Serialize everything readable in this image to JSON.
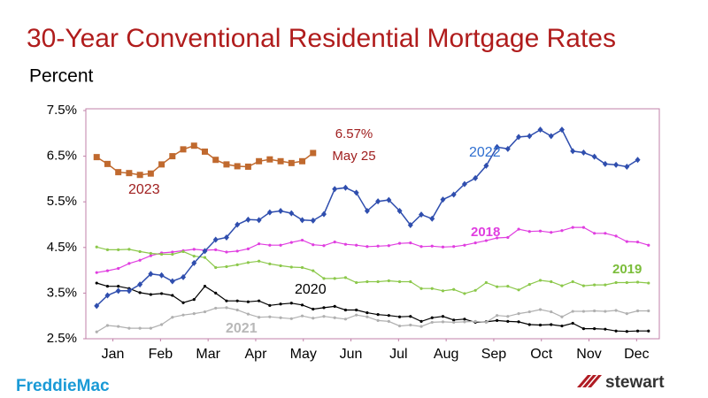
{
  "chart_data": {
    "type": "line",
    "title": "30-Year Conventional Residential Mortgage Rates",
    "subtitle": "Percent",
    "annotations": [
      "6.57%",
      "May 25"
    ],
    "x": [
      1,
      2,
      3,
      4,
      5,
      6,
      7,
      8,
      9,
      10,
      11,
      12,
      13,
      14,
      15,
      16,
      17,
      18,
      19,
      20,
      21,
      22,
      23,
      24,
      25,
      26,
      27,
      28,
      29,
      30,
      31,
      32,
      33,
      34,
      35,
      36,
      37,
      38,
      39,
      40,
      41,
      42,
      43,
      44,
      45,
      46,
      47,
      48,
      49,
      50,
      51,
      52
    ],
    "xlim": [
      0,
      53
    ],
    "xticks": [
      {
        "value": 2.5,
        "label": "Jan"
      },
      {
        "value": 6.9,
        "label": "Feb"
      },
      {
        "value": 11.3,
        "label": "Mar"
      },
      {
        "value": 15.7,
        "label": "Apr"
      },
      {
        "value": 20.1,
        "label": "May"
      },
      {
        "value": 24.5,
        "label": "Jun"
      },
      {
        "value": 28.9,
        "label": "Jul"
      },
      {
        "value": 33.3,
        "label": "Aug"
      },
      {
        "value": 37.7,
        "label": "Sep"
      },
      {
        "value": 42.1,
        "label": "Oct"
      },
      {
        "value": 46.5,
        "label": "Nov"
      },
      {
        "value": 50.9,
        "label": "Dec"
      }
    ],
    "ylim": [
      2.5,
      7.5
    ],
    "yticks": [
      {
        "value": 2.5,
        "label": "2.5%"
      },
      {
        "value": 3.5,
        "label": "3.5%"
      },
      {
        "value": 4.5,
        "label": "4.5%"
      },
      {
        "value": 5.5,
        "label": "5.5%"
      },
      {
        "value": 6.5,
        "label": "6.5%"
      },
      {
        "value": 7.5,
        "label": "7.5%"
      }
    ],
    "grid": false,
    "series": [
      {
        "name": "2018",
        "color": "#e03ee0",
        "marker": "dot",
        "values": [
          3.95,
          3.99,
          4.04,
          4.15,
          4.22,
          4.32,
          4.38,
          4.4,
          4.43,
          4.46,
          4.44,
          4.45,
          4.4,
          4.42,
          4.47,
          4.58,
          4.55,
          4.55,
          4.61,
          4.66,
          4.56,
          4.54,
          4.62,
          4.57,
          4.55,
          4.52,
          4.53,
          4.54,
          4.59,
          4.6,
          4.52,
          4.53,
          4.51,
          4.52,
          4.55,
          4.6,
          4.65,
          4.71,
          4.72,
          4.9,
          4.85,
          4.86,
          4.83,
          4.87,
          4.94,
          4.94,
          4.81,
          4.81,
          4.75,
          4.63,
          4.62,
          4.55
        ]
      },
      {
        "name": "2019",
        "color": "#8cc84b",
        "marker": "dot",
        "values": [
          4.51,
          4.45,
          4.45,
          4.46,
          4.41,
          4.37,
          4.35,
          4.35,
          4.41,
          4.31,
          4.28,
          4.06,
          4.08,
          4.12,
          4.17,
          4.2,
          4.14,
          4.1,
          4.07,
          4.06,
          3.99,
          3.82,
          3.82,
          3.84,
          3.73,
          3.75,
          3.75,
          3.77,
          3.75,
          3.75,
          3.6,
          3.6,
          3.55,
          3.58,
          3.49,
          3.56,
          3.73,
          3.64,
          3.65,
          3.57,
          3.69,
          3.78,
          3.75,
          3.66,
          3.75,
          3.66,
          3.68,
          3.68,
          3.73,
          3.73,
          3.74,
          3.72
        ]
      },
      {
        "name": "2020",
        "color": "#000000",
        "marker": "dot",
        "values": [
          3.72,
          3.65,
          3.65,
          3.6,
          3.51,
          3.47,
          3.49,
          3.45,
          3.29,
          3.36,
          3.65,
          3.5,
          3.33,
          3.33,
          3.31,
          3.33,
          3.23,
          3.26,
          3.28,
          3.24,
          3.15,
          3.18,
          3.21,
          3.13,
          3.13,
          3.07,
          3.03,
          3.01,
          2.98,
          2.99,
          2.88,
          2.96,
          2.99,
          2.91,
          2.93,
          2.86,
          2.87,
          2.9,
          2.88,
          2.87,
          2.81,
          2.8,
          2.81,
          2.78,
          2.84,
          2.72,
          2.72,
          2.71,
          2.67,
          2.66,
          2.67,
          2.67
        ]
      },
      {
        "name": "2021",
        "color": "#b0b0b0",
        "marker": "dot",
        "values": [
          2.65,
          2.79,
          2.77,
          2.73,
          2.73,
          2.73,
          2.81,
          2.97,
          3.02,
          3.05,
          3.09,
          3.17,
          3.18,
          3.13,
          3.04,
          2.97,
          2.98,
          2.96,
          2.94,
          3.0,
          2.95,
          2.99,
          2.96,
          2.93,
          3.02,
          2.98,
          2.9,
          2.88,
          2.78,
          2.8,
          2.77,
          2.86,
          2.87,
          2.86,
          2.87,
          2.88,
          2.86,
          3.01,
          2.99,
          3.05,
          3.09,
          3.14,
          3.09,
          2.98,
          3.1,
          3.1,
          3.11,
          3.1,
          3.12,
          3.05,
          3.11,
          3.11
        ]
      },
      {
        "name": "2022",
        "color": "#2f4eae",
        "marker": "diamond",
        "values": [
          3.22,
          3.45,
          3.55,
          3.55,
          3.69,
          3.92,
          3.89,
          3.76,
          3.85,
          4.16,
          4.42,
          4.67,
          4.72,
          5.0,
          5.11,
          5.1,
          5.27,
          5.3,
          5.25,
          5.1,
          5.09,
          5.23,
          5.78,
          5.81,
          5.7,
          5.3,
          5.51,
          5.54,
          5.3,
          4.99,
          5.22,
          5.13,
          5.55,
          5.66,
          5.89,
          6.02,
          6.29,
          6.7,
          6.66,
          6.92,
          6.94,
          7.08,
          6.94,
          7.08,
          6.61,
          6.58,
          6.49,
          6.33,
          6.31,
          6.27,
          6.42,
          null
        ]
      },
      {
        "name": "2023",
        "color": "#c0692e",
        "marker": "square",
        "values": [
          6.48,
          6.33,
          6.15,
          6.13,
          6.09,
          6.12,
          6.32,
          6.5,
          6.65,
          6.73,
          6.6,
          6.42,
          6.32,
          6.28,
          6.27,
          6.39,
          6.43,
          6.39,
          6.35,
          6.39,
          6.57,
          null,
          null,
          null,
          null,
          null,
          null,
          null,
          null,
          null,
          null,
          null,
          null,
          null,
          null,
          null,
          null,
          null,
          null,
          null,
          null,
          null,
          null,
          null,
          null,
          null,
          null,
          null,
          null,
          null,
          null,
          null
        ]
      }
    ]
  },
  "logos": [
    "FreddieMac",
    "stewart"
  ]
}
